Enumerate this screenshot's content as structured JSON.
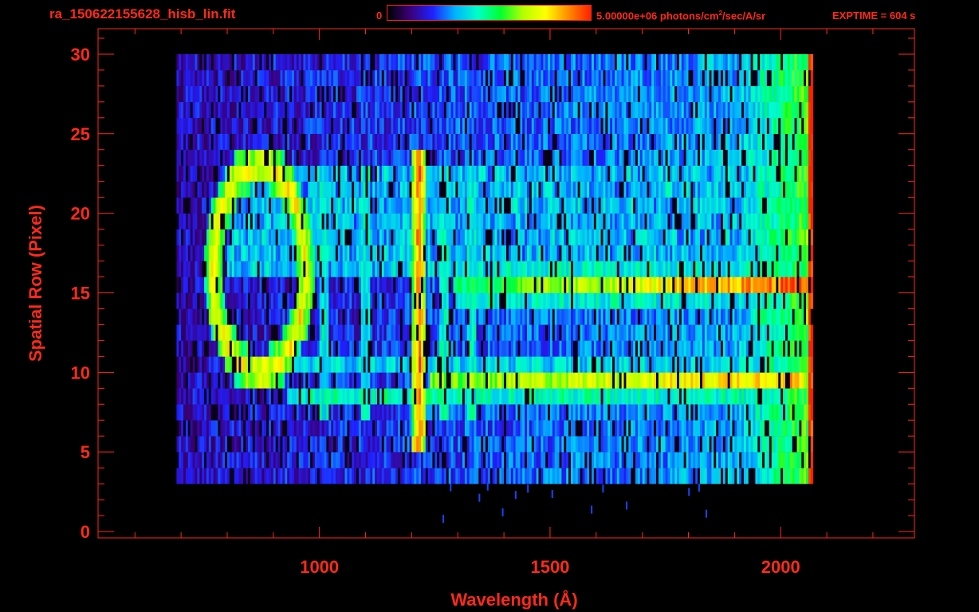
{
  "header": {
    "file_title": "ra_150622155628_hisb_lin.fit",
    "colorbar_min": "0",
    "colorbar_max_prefix": "5.00000e+06 photons/cm",
    "colorbar_max_exp": "2",
    "colorbar_max_suffix": "/sec/A/sr",
    "exptime": "EXPTIME = 604 s"
  },
  "colors": {
    "axis": "#ff2a1a",
    "background": "#000000",
    "colormap": [
      "#000000",
      "#3a0078",
      "#2020ff",
      "#00b4ff",
      "#00ffc8",
      "#00ff30",
      "#b4ff00",
      "#ffff00",
      "#ff8c00",
      "#ff2000"
    ]
  },
  "chart_data": {
    "type": "heatmap",
    "title": "ra_150622155628_hisb_lin.fit",
    "xlabel": "Wavelength (Å)",
    "ylabel": "Spatial Row (Pixel)",
    "xlim": [
      520,
      2290
    ],
    "ylim": [
      -0.4,
      31.6
    ],
    "x_ticks": [
      1000,
      1500,
      2000
    ],
    "y_ticks": [
      0,
      5,
      10,
      15,
      20,
      25,
      30
    ],
    "colorbar": {
      "min": 0,
      "max": 5000000,
      "units": "photons/cm^2/sec/A/sr"
    },
    "wavelength_coverage": [
      690,
      2070
    ],
    "spatial_coverage": [
      3,
      30
    ],
    "features": {
      "emission_line_1216": {
        "wavelength": 1216,
        "rows": [
          5,
          24
        ],
        "peak_level": 0.95
      },
      "band_row_9": {
        "row": 9.5,
        "from_wavelength": 1240,
        "to_wavelength": 2050,
        "peak_level": 0.85
      },
      "band_row_15": {
        "row": 15.5,
        "from_wavelength": 1290,
        "to_wavelength": 2060,
        "peak_level": 0.95
      },
      "ring_feature": {
        "center_wavelength": 870,
        "center_row": 16.5,
        "semi_width_angstrom": 100,
        "semi_height_rows": 6.5,
        "peak_level": 0.8
      },
      "red_edge": {
        "wavelength": 2065,
        "level": 1.0
      }
    }
  }
}
